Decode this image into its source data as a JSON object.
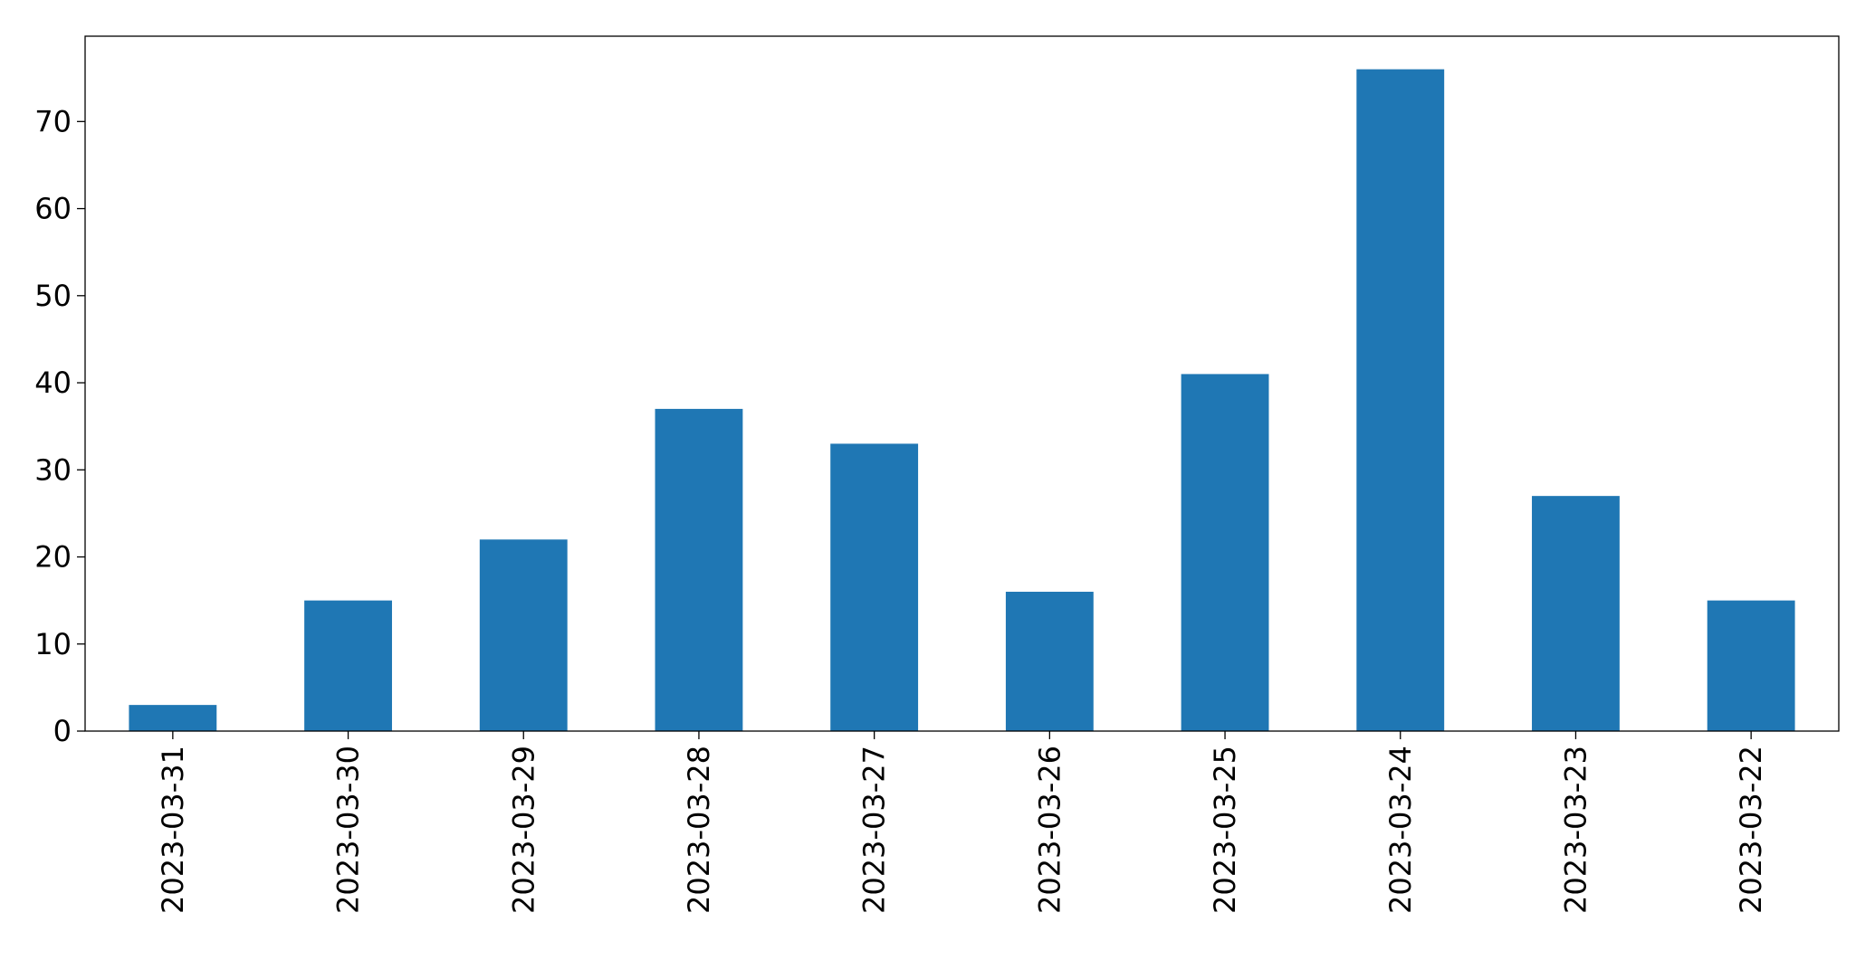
{
  "chart_data": {
    "type": "bar",
    "categories": [
      "2023-03-31",
      "2023-03-30",
      "2023-03-29",
      "2023-03-28",
      "2023-03-27",
      "2023-03-26",
      "2023-03-25",
      "2023-03-24",
      "2023-03-23",
      "2023-03-22"
    ],
    "values": [
      3,
      15,
      22,
      37,
      33,
      16,
      41,
      76,
      27,
      15
    ],
    "color": "#1f77b4",
    "ylim": [
      0,
      79.8
    ],
    "yticks": [
      0,
      10,
      20,
      30,
      40,
      50,
      60,
      70
    ],
    "grid": false
  }
}
